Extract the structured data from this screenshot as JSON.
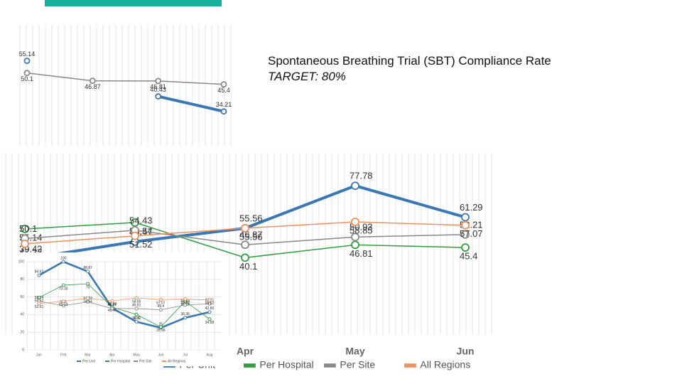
{
  "slide": {
    "title": "Spontaneous Breathing Trial (SBT) Compliance Rate",
    "subtitle": "TARGET: 80%"
  },
  "chart_data": [
    {
      "type": "line",
      "categories": [
        null,
        null,
        null,
        null
      ],
      "ylim": [
        20,
        70
      ],
      "series": [
        {
          "color": "#3a78b5",
          "values": [
            55.14,
            null,
            40.43,
            34.21
          ]
        },
        {
          "color": "#888888",
          "values": [
            50.1,
            46.87,
            46.81,
            45.4
          ]
        }
      ]
    },
    {
      "type": "line",
      "categories": [
        null,
        null,
        "Apr",
        "May",
        "Jun"
      ],
      "ylim": [
        0,
        95
      ],
      "legend": "bottom",
      "series": [
        {
          "name": "Per Unit",
          "color": "#3a78b5",
          "values": [
            39.42,
            48.47,
            55.56,
            77.78,
            61.29
          ]
        },
        {
          "name": "Per Hospital",
          "color": "#2e9e3e",
          "values": [
            55.14,
            58.54,
            40.1,
            46.81,
            45.4
          ]
        },
        {
          "name": "Per Site",
          "color": "#888888",
          "values": [
            50.1,
            54.43,
            46.87,
            50.93,
            52.21
          ]
        },
        {
          "name": "All Regions",
          "color": "#ee9060",
          "values": [
            47.37,
            51.52,
            55.56,
            58.85,
            57.07
          ]
        }
      ]
    },
    {
      "type": "line",
      "categories": [
        "Jan",
        "Feb",
        "Mar",
        "Apr",
        "May",
        "Jun",
        "Jul",
        "Aug"
      ],
      "ylim": [
        0,
        100
      ],
      "yticks": [
        0,
        20,
        40,
        60,
        80,
        100
      ],
      "grid": true,
      "legend": "bottom",
      "series": [
        {
          "name": "Per Unit",
          "color": "#3a78b5",
          "values": [
            84.62,
            100,
            88.87,
            47.37,
            31.82,
            25,
            36.36,
            42.86
          ]
        },
        {
          "name": "Per Hospital",
          "color": "#2e9e3e",
          "values": [
            59.42,
            73.33,
            75,
            48.47,
            40.1,
            25.96,
            55.16,
            34.88
          ]
        },
        {
          "name": "Per Site",
          "color": "#888888",
          "values": [
            55.14,
            50.1,
            54.43,
            46.87,
            46.81,
            45.4,
            50.93,
            52.21
          ]
        },
        {
          "name": "All Regions",
          "color": "#ee9060",
          "values": [
            52.61,
            55.14,
            58.54,
            55.56,
            58.85,
            57.07,
            57.59,
            56.52
          ]
        }
      ]
    }
  ]
}
